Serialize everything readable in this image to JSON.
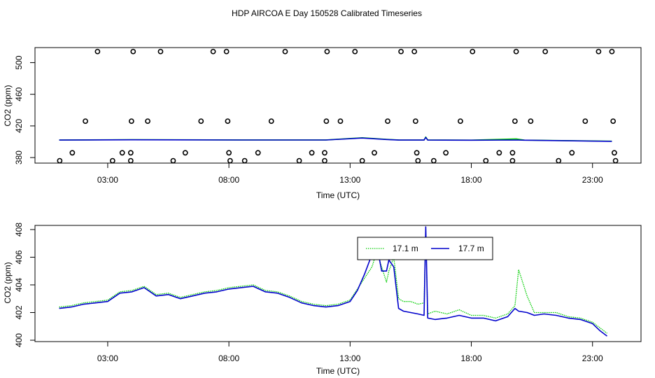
{
  "colors": {
    "background": "#ffffff",
    "axis": "#000000",
    "series_green": "#00cc00",
    "series_blue": "#0000cc"
  },
  "chart_data": [
    {
      "type": "scatter",
      "title": "HDP AIRCOA E  Day 150528  Calibrated Timeseries",
      "xlabel": "Time (UTC)",
      "ylabel": "CO2 (ppm)",
      "xlim": [
        0,
        25
      ],
      "ylim": [
        373,
        519
      ],
      "xticks": [
        3,
        8,
        13,
        18,
        23
      ],
      "xtick_labels": [
        "03:00",
        "08:00",
        "13:00",
        "18:00",
        "23:00"
      ],
      "yticks": [
        380,
        420,
        460,
        500
      ],
      "ytick_labels": [
        "380",
        "420",
        "460",
        "500"
      ],
      "points": [
        {
          "x": 1.02,
          "y": 376
        },
        {
          "x": 1.54,
          "y": 386
        },
        {
          "x": 2.08,
          "y": 426
        },
        {
          "x": 2.58,
          "y": 514
        },
        {
          "x": 3.2,
          "y": 376
        },
        {
          "x": 3.6,
          "y": 386
        },
        {
          "x": 3.95,
          "y": 376
        },
        {
          "x": 3.95,
          "y": 386
        },
        {
          "x": 3.98,
          "y": 426
        },
        {
          "x": 4.05,
          "y": 514
        },
        {
          "x": 4.65,
          "y": 426
        },
        {
          "x": 5.18,
          "y": 514
        },
        {
          "x": 5.7,
          "y": 376
        },
        {
          "x": 6.2,
          "y": 386
        },
        {
          "x": 6.85,
          "y": 426
        },
        {
          "x": 7.35,
          "y": 514
        },
        {
          "x": 7.9,
          "y": 514
        },
        {
          "x": 7.95,
          "y": 426
        },
        {
          "x": 8.0,
          "y": 386
        },
        {
          "x": 8.05,
          "y": 376
        },
        {
          "x": 8.65,
          "y": 376
        },
        {
          "x": 9.2,
          "y": 386
        },
        {
          "x": 9.75,
          "y": 426
        },
        {
          "x": 10.32,
          "y": 514
        },
        {
          "x": 10.9,
          "y": 376
        },
        {
          "x": 11.42,
          "y": 386
        },
        {
          "x": 11.95,
          "y": 376
        },
        {
          "x": 11.95,
          "y": 386
        },
        {
          "x": 12.02,
          "y": 426
        },
        {
          "x": 12.05,
          "y": 514
        },
        {
          "x": 12.6,
          "y": 426
        },
        {
          "x": 13.2,
          "y": 514
        },
        {
          "x": 13.5,
          "y": 376
        },
        {
          "x": 14.0,
          "y": 386
        },
        {
          "x": 14.55,
          "y": 426
        },
        {
          "x": 15.1,
          "y": 514
        },
        {
          "x": 15.65,
          "y": 514
        },
        {
          "x": 15.7,
          "y": 426
        },
        {
          "x": 15.75,
          "y": 386
        },
        {
          "x": 15.8,
          "y": 376
        },
        {
          "x": 16.45,
          "y": 376
        },
        {
          "x": 16.95,
          "y": 386
        },
        {
          "x": 17.55,
          "y": 426
        },
        {
          "x": 18.05,
          "y": 514
        },
        {
          "x": 18.6,
          "y": 376
        },
        {
          "x": 19.15,
          "y": 386
        },
        {
          "x": 19.7,
          "y": 376
        },
        {
          "x": 19.7,
          "y": 386
        },
        {
          "x": 19.8,
          "y": 426
        },
        {
          "x": 19.85,
          "y": 514
        },
        {
          "x": 20.45,
          "y": 426
        },
        {
          "x": 21.05,
          "y": 514
        },
        {
          "x": 21.6,
          "y": 376
        },
        {
          "x": 22.15,
          "y": 386
        },
        {
          "x": 22.7,
          "y": 426
        },
        {
          "x": 23.25,
          "y": 514
        },
        {
          "x": 23.8,
          "y": 514
        },
        {
          "x": 23.85,
          "y": 426
        },
        {
          "x": 23.9,
          "y": 386
        },
        {
          "x": 23.95,
          "y": 376
        }
      ],
      "series": [
        {
          "color": "#00cc00",
          "x": [
            1,
            4,
            8.5,
            12,
            13.5,
            14.5,
            15,
            16.05,
            16.12,
            16.2,
            18,
            19.85,
            20.2,
            23.8
          ],
          "y": [
            402.2,
            402.6,
            402.3,
            402.3,
            405,
            403,
            402.3,
            402.2,
            406,
            402.3,
            402,
            403.6,
            402,
            400.7
          ]
        },
        {
          "color": "#0000cc",
          "x": [
            1,
            4,
            8.5,
            12,
            13.5,
            14.5,
            15,
            16.05,
            16.12,
            16.2,
            18,
            19.85,
            20.2,
            23.8
          ],
          "y": [
            402.1,
            402.5,
            402.2,
            402.2,
            404.7,
            402.8,
            402.1,
            402.1,
            405.5,
            402.1,
            401.9,
            402.2,
            401.9,
            400.5
          ]
        }
      ]
    },
    {
      "type": "line",
      "xlabel": "Time (UTC)",
      "ylabel": "CO2 (ppm)",
      "xlim": [
        0,
        25
      ],
      "ylim": [
        399.9,
        408.3
      ],
      "xticks": [
        3,
        8,
        13,
        18,
        23
      ],
      "xtick_labels": [
        "03:00",
        "08:00",
        "13:00",
        "18:00",
        "23:00"
      ],
      "yticks": [
        400,
        402,
        404,
        406,
        408
      ],
      "ytick_labels": [
        "400",
        "402",
        "404",
        "406",
        "408"
      ],
      "legend": {
        "position": "top-center"
      },
      "series": [
        {
          "name": "17.1 m",
          "color": "#00cc00",
          "style": "dotted",
          "x": [
            1.0,
            1.5,
            2.0,
            2.5,
            3.0,
            3.5,
            4.0,
            4.5,
            5.0,
            5.5,
            6.0,
            6.5,
            7.0,
            7.5,
            8.0,
            8.5,
            9.0,
            9.5,
            10.0,
            10.5,
            11.0,
            11.5,
            12.0,
            12.5,
            13.0,
            13.3,
            13.6,
            13.9,
            14.1,
            14.3,
            14.5,
            14.6,
            14.8,
            15.0,
            15.2,
            15.5,
            15.8,
            16.05,
            16.12,
            16.2,
            16.5,
            17.0,
            17.5,
            18.0,
            18.5,
            19.0,
            19.5,
            19.8,
            19.95,
            20.3,
            20.6,
            21.0,
            21.5,
            22.0,
            22.5,
            23.0,
            23.3,
            23.6
          ],
          "y": [
            402.4,
            402.5,
            402.7,
            402.8,
            402.9,
            403.5,
            403.6,
            403.9,
            403.3,
            403.4,
            403.1,
            403.3,
            403.5,
            403.6,
            403.8,
            403.9,
            404.0,
            403.6,
            403.5,
            403.2,
            402.8,
            402.6,
            402.5,
            402.6,
            402.9,
            403.7,
            404.5,
            405.3,
            406.4,
            405.3,
            404.2,
            405.0,
            406.0,
            403.0,
            402.8,
            402.8,
            402.6,
            402.7,
            408.0,
            401.9,
            402.1,
            401.9,
            402.2,
            401.8,
            401.8,
            401.6,
            401.9,
            402.5,
            405.1,
            403.2,
            402.0,
            402.0,
            402.0,
            401.7,
            401.6,
            401.3,
            400.9,
            400.5
          ]
        },
        {
          "name": "17.7 m",
          "color": "#0000cc",
          "style": "solid",
          "x": [
            1.0,
            1.5,
            2.0,
            2.5,
            3.0,
            3.5,
            4.0,
            4.5,
            5.0,
            5.5,
            6.0,
            6.5,
            7.0,
            7.5,
            8.0,
            8.5,
            9.0,
            9.5,
            10.0,
            10.5,
            11.0,
            11.5,
            12.0,
            12.5,
            13.0,
            13.3,
            13.6,
            13.9,
            14.1,
            14.3,
            14.5,
            14.6,
            14.8,
            15.0,
            15.2,
            15.5,
            15.8,
            16.05,
            16.12,
            16.2,
            16.5,
            17.0,
            17.5,
            18.0,
            18.5,
            19.0,
            19.5,
            19.8,
            19.95,
            20.3,
            20.6,
            21.0,
            21.5,
            22.0,
            22.5,
            23.0,
            23.3,
            23.6
          ],
          "y": [
            402.3,
            402.4,
            402.6,
            402.7,
            402.8,
            403.4,
            403.5,
            403.8,
            403.2,
            403.3,
            403.0,
            403.2,
            403.4,
            403.5,
            403.7,
            403.8,
            403.9,
            403.5,
            403.4,
            403.1,
            402.7,
            402.5,
            402.4,
            402.5,
            402.8,
            403.6,
            404.8,
            406.2,
            406.9,
            405.0,
            405.0,
            405.8,
            405.3,
            402.3,
            402.1,
            402.0,
            401.9,
            401.8,
            408.2,
            401.6,
            401.5,
            401.6,
            401.8,
            401.6,
            401.6,
            401.4,
            401.7,
            402.3,
            402.1,
            402.0,
            401.8,
            401.9,
            401.8,
            401.6,
            401.5,
            401.2,
            400.7,
            400.3
          ]
        }
      ]
    }
  ]
}
